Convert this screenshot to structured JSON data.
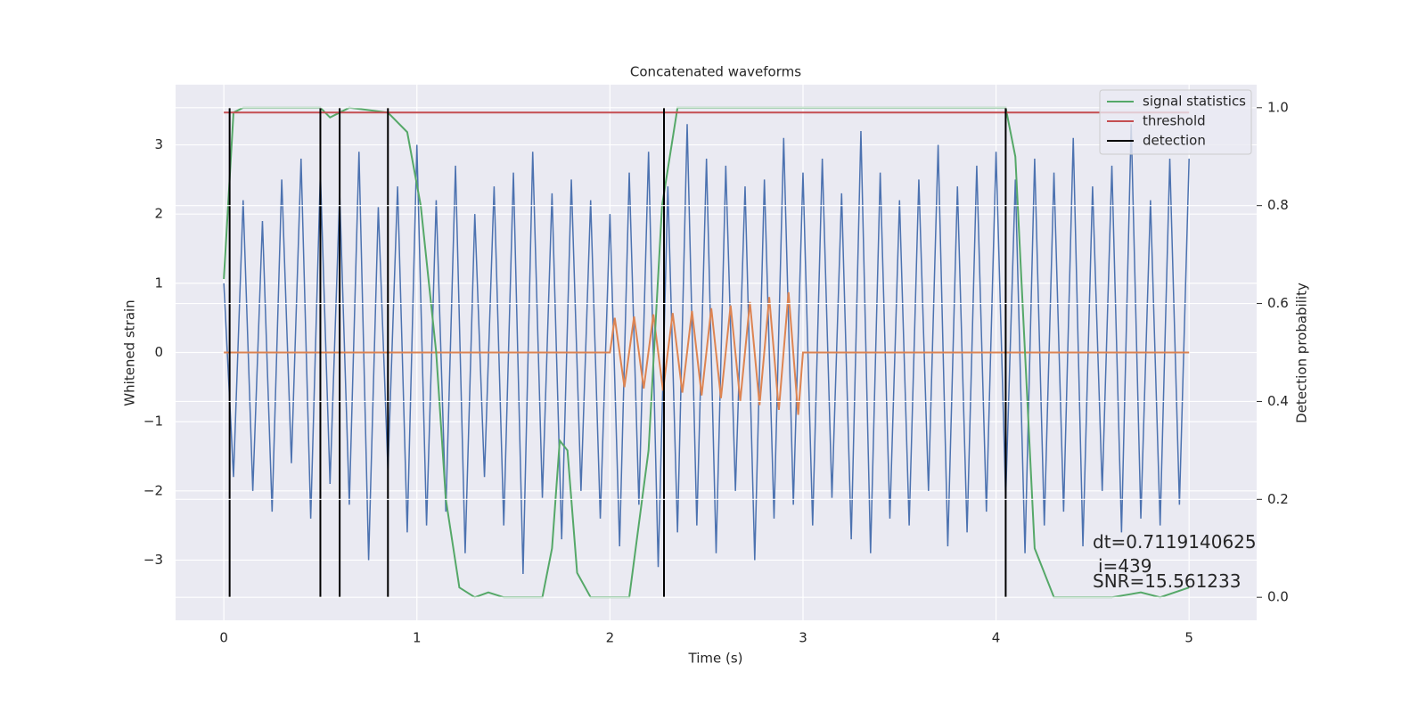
{
  "chart_data": {
    "type": "line",
    "title": "Concatenated waveforms",
    "x_label": "Time (s)",
    "y_label": "Whitened strain",
    "y2_label": "Detection probability",
    "xlim": [
      -0.25,
      5.35
    ],
    "ylim": [
      -3.87,
      3.87
    ],
    "y2lim": [
      -0.047,
      1.047
    ],
    "xticks": [
      0,
      1,
      2,
      3,
      4,
      5
    ],
    "yticks": [
      {
        "value": -3,
        "label": "−3"
      },
      {
        "value": -2,
        "label": "−2"
      },
      {
        "value": -1,
        "label": "−1"
      },
      0,
      1,
      2,
      3
    ],
    "y2ticks": [
      {
        "value": 0,
        "label": "0.0"
      },
      0.2,
      0.4,
      0.6,
      0.8,
      {
        "value": 1,
        "label": "1.0"
      }
    ],
    "grid": true,
    "legend": "upper right",
    "series": [
      {
        "color": "#4c72b0",
        "x": [
          0,
          0.05,
          0.1,
          0.15,
          0.2,
          0.25,
          0.3,
          0.35,
          0.4,
          0.45,
          0.5,
          0.55,
          0.6,
          0.65,
          0.7,
          0.75,
          0.8,
          0.85,
          0.9,
          0.95,
          1,
          1.05,
          1.1,
          1.15,
          1.2,
          1.25,
          1.3,
          1.35,
          1.4,
          1.45,
          1.5,
          1.55,
          1.6,
          1.65,
          1.7,
          1.75,
          1.8,
          1.85,
          1.9,
          1.95,
          2,
          2.05,
          2.1,
          2.15,
          2.2,
          2.25,
          2.3,
          2.35,
          2.4,
          2.45,
          2.5,
          2.55,
          2.6,
          2.65,
          2.7,
          2.75,
          2.8,
          2.85,
          2.9,
          2.95,
          3,
          3.05,
          3.1,
          3.15,
          3.2,
          3.25,
          3.3,
          3.35,
          3.4,
          3.45,
          3.5,
          3.55,
          3.6,
          3.65,
          3.7,
          3.75,
          3.8,
          3.85,
          3.9,
          3.95,
          4,
          4.05,
          4.1,
          4.15,
          4.2,
          4.25,
          4.3,
          4.35,
          4.4,
          4.45,
          4.5,
          4.55,
          4.6,
          4.65,
          4.7,
          4.75,
          4.8,
          4.85,
          4.9,
          4.95,
          5
        ],
        "values": [
          1.0,
          -1.8,
          2.2,
          -2.0,
          1.9,
          -2.3,
          2.5,
          -1.6,
          2.8,
          -2.4,
          2.6,
          -1.9,
          2.3,
          -2.2,
          2.9,
          -3.0,
          2.1,
          -1.7,
          2.4,
          -2.6,
          3.0,
          -2.5,
          2.2,
          -2.3,
          2.7,
          -2.9,
          2.0,
          -1.8,
          2.4,
          -2.5,
          2.6,
          -3.2,
          2.9,
          -2.1,
          2.3,
          -2.7,
          2.5,
          -2.0,
          2.2,
          -2.4,
          2.0,
          -2.8,
          2.6,
          -2.2,
          2.9,
          -3.1,
          2.4,
          -2.6,
          3.3,
          -2.5,
          2.8,
          -2.9,
          2.7,
          -2.0,
          2.4,
          -3.0,
          2.5,
          -2.4,
          3.1,
          -2.2,
          2.6,
          -2.5,
          2.8,
          -2.1,
          2.3,
          -2.7,
          3.2,
          -2.9,
          2.6,
          -2.4,
          2.2,
          -2.5,
          2.5,
          -2.0,
          3.0,
          -2.8,
          2.4,
          -2.6,
          2.7,
          -2.3,
          2.9,
          -2.1,
          2.5,
          -2.9,
          2.8,
          -2.5,
          2.6,
          -2.3,
          3.1,
          -2.8,
          2.4,
          -2.0,
          2.7,
          -2.6,
          3.3,
          -2.4,
          2.2,
          -2.5,
          2.8,
          -2.2,
          2.8
        ]
      },
      {
        "color": "#dd8452",
        "x": [
          0,
          2,
          2.025,
          2.075,
          2.125,
          2.175,
          2.225,
          2.275,
          2.325,
          2.375,
          2.425,
          2.475,
          2.525,
          2.575,
          2.625,
          2.675,
          2.725,
          2.775,
          2.825,
          2.875,
          2.925,
          2.975,
          3,
          5
        ],
        "values": [
          0,
          0,
          0.5,
          -0.5,
          0.52,
          -0.52,
          0.55,
          -0.55,
          0.57,
          -0.58,
          0.6,
          -0.62,
          0.64,
          -0.66,
          0.68,
          -0.7,
          0.73,
          -0.76,
          0.8,
          -0.83,
          0.87,
          -0.9,
          0,
          0
        ]
      },
      {
        "name": "signal statistics",
        "color": "#55a868",
        "axis": "y2",
        "x": [
          0,
          0.05,
          0.1,
          0.5,
          0.55,
          0.65,
          0.85,
          0.95,
          1.02,
          1.1,
          1.15,
          1.22,
          1.3,
          1.37,
          1.45,
          1.65,
          1.7,
          1.74,
          1.78,
          1.83,
          1.9,
          2.1,
          2.2,
          2.27,
          2.35,
          4.05,
          4.1,
          4.15,
          4.2,
          4.3,
          4.6,
          4.75,
          4.85,
          5
        ],
        "values": [
          0.65,
          0.99,
          1,
          1,
          0.98,
          1,
          0.99,
          0.95,
          0.8,
          0.5,
          0.2,
          0.02,
          0,
          0.01,
          0,
          0,
          0.1,
          0.32,
          0.3,
          0.05,
          0,
          0,
          0.3,
          0.8,
          1,
          1,
          0.9,
          0.5,
          0.1,
          0,
          0,
          0.01,
          0,
          0.02
        ]
      },
      {
        "name": "threshold",
        "color": "#c44e52",
        "axis": "y2",
        "x": [
          0,
          5
        ],
        "values": [
          0.99,
          0.99
        ]
      },
      {
        "name": "detection",
        "color": "#000000",
        "axis": "y2",
        "style": "vlines",
        "ymin": 0,
        "ymax": 1,
        "x": [
          0.03,
          0.5,
          0.6,
          0.85,
          2.28,
          4.05
        ]
      }
    ],
    "annotations": [
      "dt=0.7119140625",
      "i=439",
      "SNR=15.561233"
    ]
  }
}
